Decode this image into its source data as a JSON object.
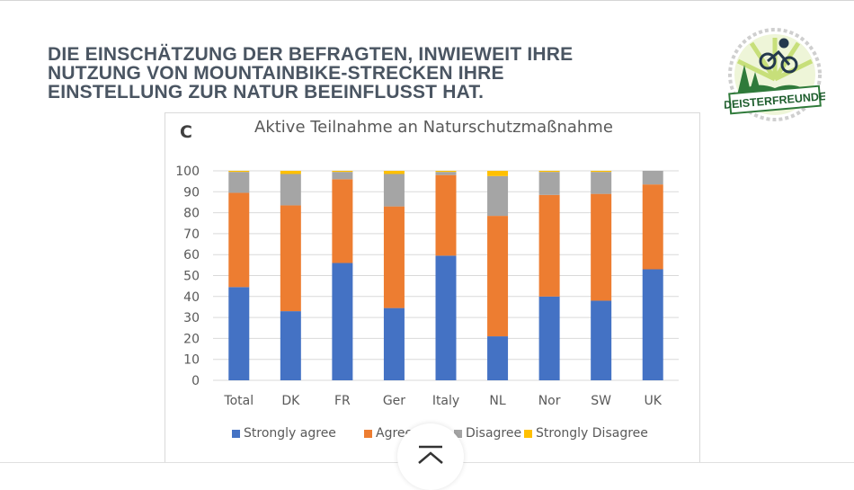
{
  "slide": {
    "title_lines": [
      "DIE EINSCHÄTZUNG DER BEFRAGTEN, INWIEWEIT IHRE",
      "NUTZUNG VON MOUNTAINBIKE-STRECKEN IHRE",
      "EINSTELLUNG ZUR NATUR BEEINFLUSST HAT."
    ],
    "logo_text": "DEISTERFREUNDE"
  },
  "chart_data": {
    "type": "bar",
    "stacked": true,
    "panel_label": "C",
    "title": "Aktive Teilnahme an Naturschutzmaßnahme",
    "xlabel": "",
    "ylabel": "",
    "ylim": [
      0,
      100
    ],
    "yticks": [
      0,
      10,
      20,
      30,
      40,
      50,
      60,
      70,
      80,
      90,
      100
    ],
    "grid": true,
    "legend_position": "bottom",
    "categories": [
      "Total",
      "DK",
      "FR",
      "Ger",
      "Italy",
      "NL",
      "Nor",
      "SW",
      "UK"
    ],
    "series": [
      {
        "name": "Strongly agree",
        "color": "#4472C4",
        "values": [
          44.5,
          33,
          56,
          34.5,
          59.5,
          21,
          40,
          38,
          53
        ]
      },
      {
        "name": "Agree",
        "color": "#ED7D31",
        "values": [
          45,
          50.5,
          40,
          48.5,
          38.5,
          57.5,
          48.5,
          51,
          40.5
        ]
      },
      {
        "name": "Disagree",
        "color": "#A5A5A5",
        "values": [
          10,
          15,
          3.5,
          15.5,
          1.5,
          19,
          11,
          10.5,
          6.5
        ]
      },
      {
        "name": "Strongly Disagree",
        "color": "#FFC000",
        "values": [
          0.5,
          1.5,
          0.5,
          1.5,
          0.5,
          2.5,
          0.5,
          0.5,
          0
        ]
      }
    ]
  },
  "ui": {
    "scroll_top_icon": "chevron-up-to-top-icon"
  }
}
